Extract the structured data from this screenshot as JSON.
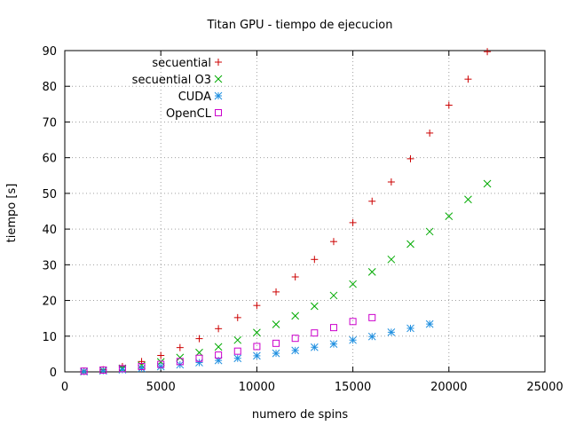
{
  "chart_data": {
    "type": "scatter",
    "title": "Titan GPU - tiempo de ejecucion",
    "xlabel": "numero de spins",
    "ylabel": "tiempo [s]",
    "xlim": [
      0,
      25000
    ],
    "ylim": [
      0,
      90
    ],
    "xticks": [
      0,
      5000,
      10000,
      15000,
      20000,
      25000
    ],
    "yticks": [
      0,
      10,
      20,
      30,
      40,
      50,
      60,
      70,
      80,
      90
    ],
    "grid": true,
    "legend_position": "top-left",
    "series": [
      {
        "name": "secuential",
        "marker": "plus",
        "color": "#cc0000",
        "x": [
          1000,
          2000,
          3000,
          4000,
          5000,
          6000,
          7000,
          8000,
          9000,
          10000,
          11000,
          12000,
          13000,
          14000,
          15000,
          16000,
          17000,
          18000,
          19000,
          20000,
          21000,
          22000
        ],
        "y": [
          0.2,
          0.6,
          1.5,
          2.9,
          4.6,
          6.8,
          9.3,
          12.1,
          15.2,
          18.6,
          22.4,
          26.6,
          31.5,
          36.5,
          41.8,
          47.8,
          53.2,
          59.7,
          66.9,
          74.7,
          82.0,
          89.7
        ]
      },
      {
        "name": "secuential O3",
        "marker": "cross",
        "color": "#00aa00",
        "x": [
          1000,
          2000,
          3000,
          4000,
          5000,
          6000,
          7000,
          8000,
          9000,
          10000,
          11000,
          12000,
          13000,
          14000,
          15000,
          16000,
          17000,
          18000,
          19000,
          20000,
          21000,
          22000
        ],
        "y": [
          0.1,
          0.4,
          1.0,
          1.8,
          2.8,
          4.0,
          5.4,
          7.0,
          8.9,
          11.0,
          13.3,
          15.7,
          18.4,
          21.4,
          24.6,
          28.0,
          31.5,
          35.8,
          39.3,
          43.6,
          48.3,
          52.7
        ]
      },
      {
        "name": "CUDA",
        "marker": "star",
        "color": "#1e8fe0",
        "x": [
          1000,
          2000,
          3000,
          4000,
          5000,
          6000,
          7000,
          8000,
          9000,
          10000,
          11000,
          12000,
          13000,
          14000,
          15000,
          16000,
          17000,
          18000,
          19000
        ],
        "y": [
          0.1,
          0.3,
          0.6,
          1.0,
          1.5,
          2.0,
          2.6,
          3.2,
          3.8,
          4.5,
          5.2,
          6.0,
          6.9,
          7.8,
          8.9,
          9.9,
          11.1,
          12.2,
          13.4
        ]
      },
      {
        "name": "OpenCL",
        "marker": "square",
        "color": "#cc00cc",
        "x": [
          1000,
          2000,
          3000,
          4000,
          5000,
          6000,
          7000,
          8000,
          9000,
          10000,
          11000,
          12000,
          13000,
          14000,
          15000,
          16000
        ],
        "y": [
          0.2,
          0.5,
          0.9,
          1.5,
          2.1,
          2.9,
          3.8,
          4.7,
          5.8,
          7.1,
          8.0,
          9.4,
          10.9,
          12.4,
          14.1,
          15.2
        ]
      }
    ]
  }
}
